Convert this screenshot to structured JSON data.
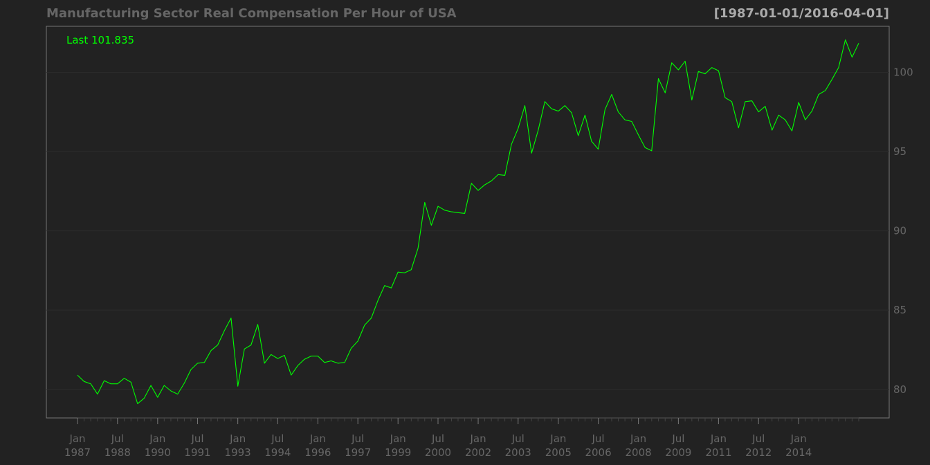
{
  "chart_data": {
    "type": "line",
    "title": "Manufacturing Sector Real Compensation Per Hour of USA",
    "date_range": "[1987-01-01/2016-04-01]",
    "last_label": "Last 101.835",
    "ylim": [
      78.2,
      102.9
    ],
    "yticks": [
      80,
      85,
      90,
      95,
      100
    ],
    "xlim": [
      "1987-01-01",
      "2016-04-01"
    ],
    "xticks": [
      {
        "date": "1987-01-01",
        "line1": "Jan",
        "line2": "1987"
      },
      {
        "date": "1988-07-01",
        "line1": "Jul",
        "line2": "1988"
      },
      {
        "date": "1990-01-01",
        "line1": "Jan",
        "line2": "1990"
      },
      {
        "date": "1991-07-01",
        "line1": "Jul",
        "line2": "1991"
      },
      {
        "date": "1993-01-01",
        "line1": "Jan",
        "line2": "1993"
      },
      {
        "date": "1994-07-01",
        "line1": "Jul",
        "line2": "1994"
      },
      {
        "date": "1996-01-01",
        "line1": "Jan",
        "line2": "1996"
      },
      {
        "date": "1997-07-01",
        "line1": "Jul",
        "line2": "1997"
      },
      {
        "date": "1999-01-01",
        "line1": "Jan",
        "line2": "1999"
      },
      {
        "date": "2000-07-01",
        "line1": "Jul",
        "line2": "2000"
      },
      {
        "date": "2002-01-01",
        "line1": "Jan",
        "line2": "2002"
      },
      {
        "date": "2003-07-01",
        "line1": "Jul",
        "line2": "2003"
      },
      {
        "date": "2005-01-01",
        "line1": "Jan",
        "line2": "2005"
      },
      {
        "date": "2006-07-01",
        "line1": "Jul",
        "line2": "2006"
      },
      {
        "date": "2008-01-01",
        "line1": "Jan",
        "line2": "2008"
      },
      {
        "date": "2009-07-01",
        "line1": "Jul",
        "line2": "2009"
      },
      {
        "date": "2011-01-01",
        "line1": "Jan",
        "line2": "2011"
      },
      {
        "date": "2012-07-01",
        "line1": "Jul",
        "line2": "2012"
      },
      {
        "date": "2014-01-01",
        "line1": "Jan",
        "line2": "2014"
      }
    ],
    "grid": true,
    "colors": {
      "background": "#222222",
      "line": "#00ff00",
      "grid": "#2c2c2c",
      "text": "#666666",
      "frame": "#777777"
    },
    "series": [
      {
        "frequency": "quarterly",
        "start": "1987-01-01",
        "values": [
          80.9,
          80.5,
          80.35,
          79.7,
          80.55,
          80.35,
          80.35,
          80.7,
          80.45,
          79.1,
          79.45,
          80.25,
          79.5,
          80.25,
          79.9,
          79.7,
          80.4,
          81.25,
          81.65,
          81.7,
          82.45,
          82.8,
          83.7,
          84.5,
          80.2,
          82.55,
          82.8,
          84.1,
          81.65,
          82.2,
          81.95,
          82.15,
          80.9,
          81.5,
          81.9,
          82.1,
          82.1,
          81.7,
          81.8,
          81.65,
          81.7,
          82.6,
          83.05,
          84.05,
          84.5,
          85.6,
          86.55,
          86.4,
          87.4,
          87.35,
          87.55,
          88.9,
          91.8,
          90.35,
          91.55,
          91.3,
          91.2,
          91.15,
          91.1,
          93.0,
          92.55,
          92.9,
          93.15,
          93.55,
          93.5,
          95.45,
          96.45,
          97.9,
          94.9,
          96.35,
          98.15,
          97.7,
          97.55,
          97.9,
          97.45,
          96.0,
          97.3,
          95.65,
          95.15,
          97.65,
          98.6,
          97.5,
          97.0,
          96.9,
          96.05,
          95.25,
          95.05,
          99.6,
          98.7,
          100.6,
          100.15,
          100.7,
          98.25,
          100.05,
          99.9,
          100.3,
          100.1,
          98.4,
          98.15,
          96.5,
          98.15,
          98.2,
          97.5,
          97.85,
          96.35,
          97.3,
          97.0,
          96.3,
          98.1,
          97.0,
          97.55,
          98.6,
          98.85,
          99.55,
          100.3,
          102.05,
          100.95,
          101.835
        ]
      }
    ]
  }
}
